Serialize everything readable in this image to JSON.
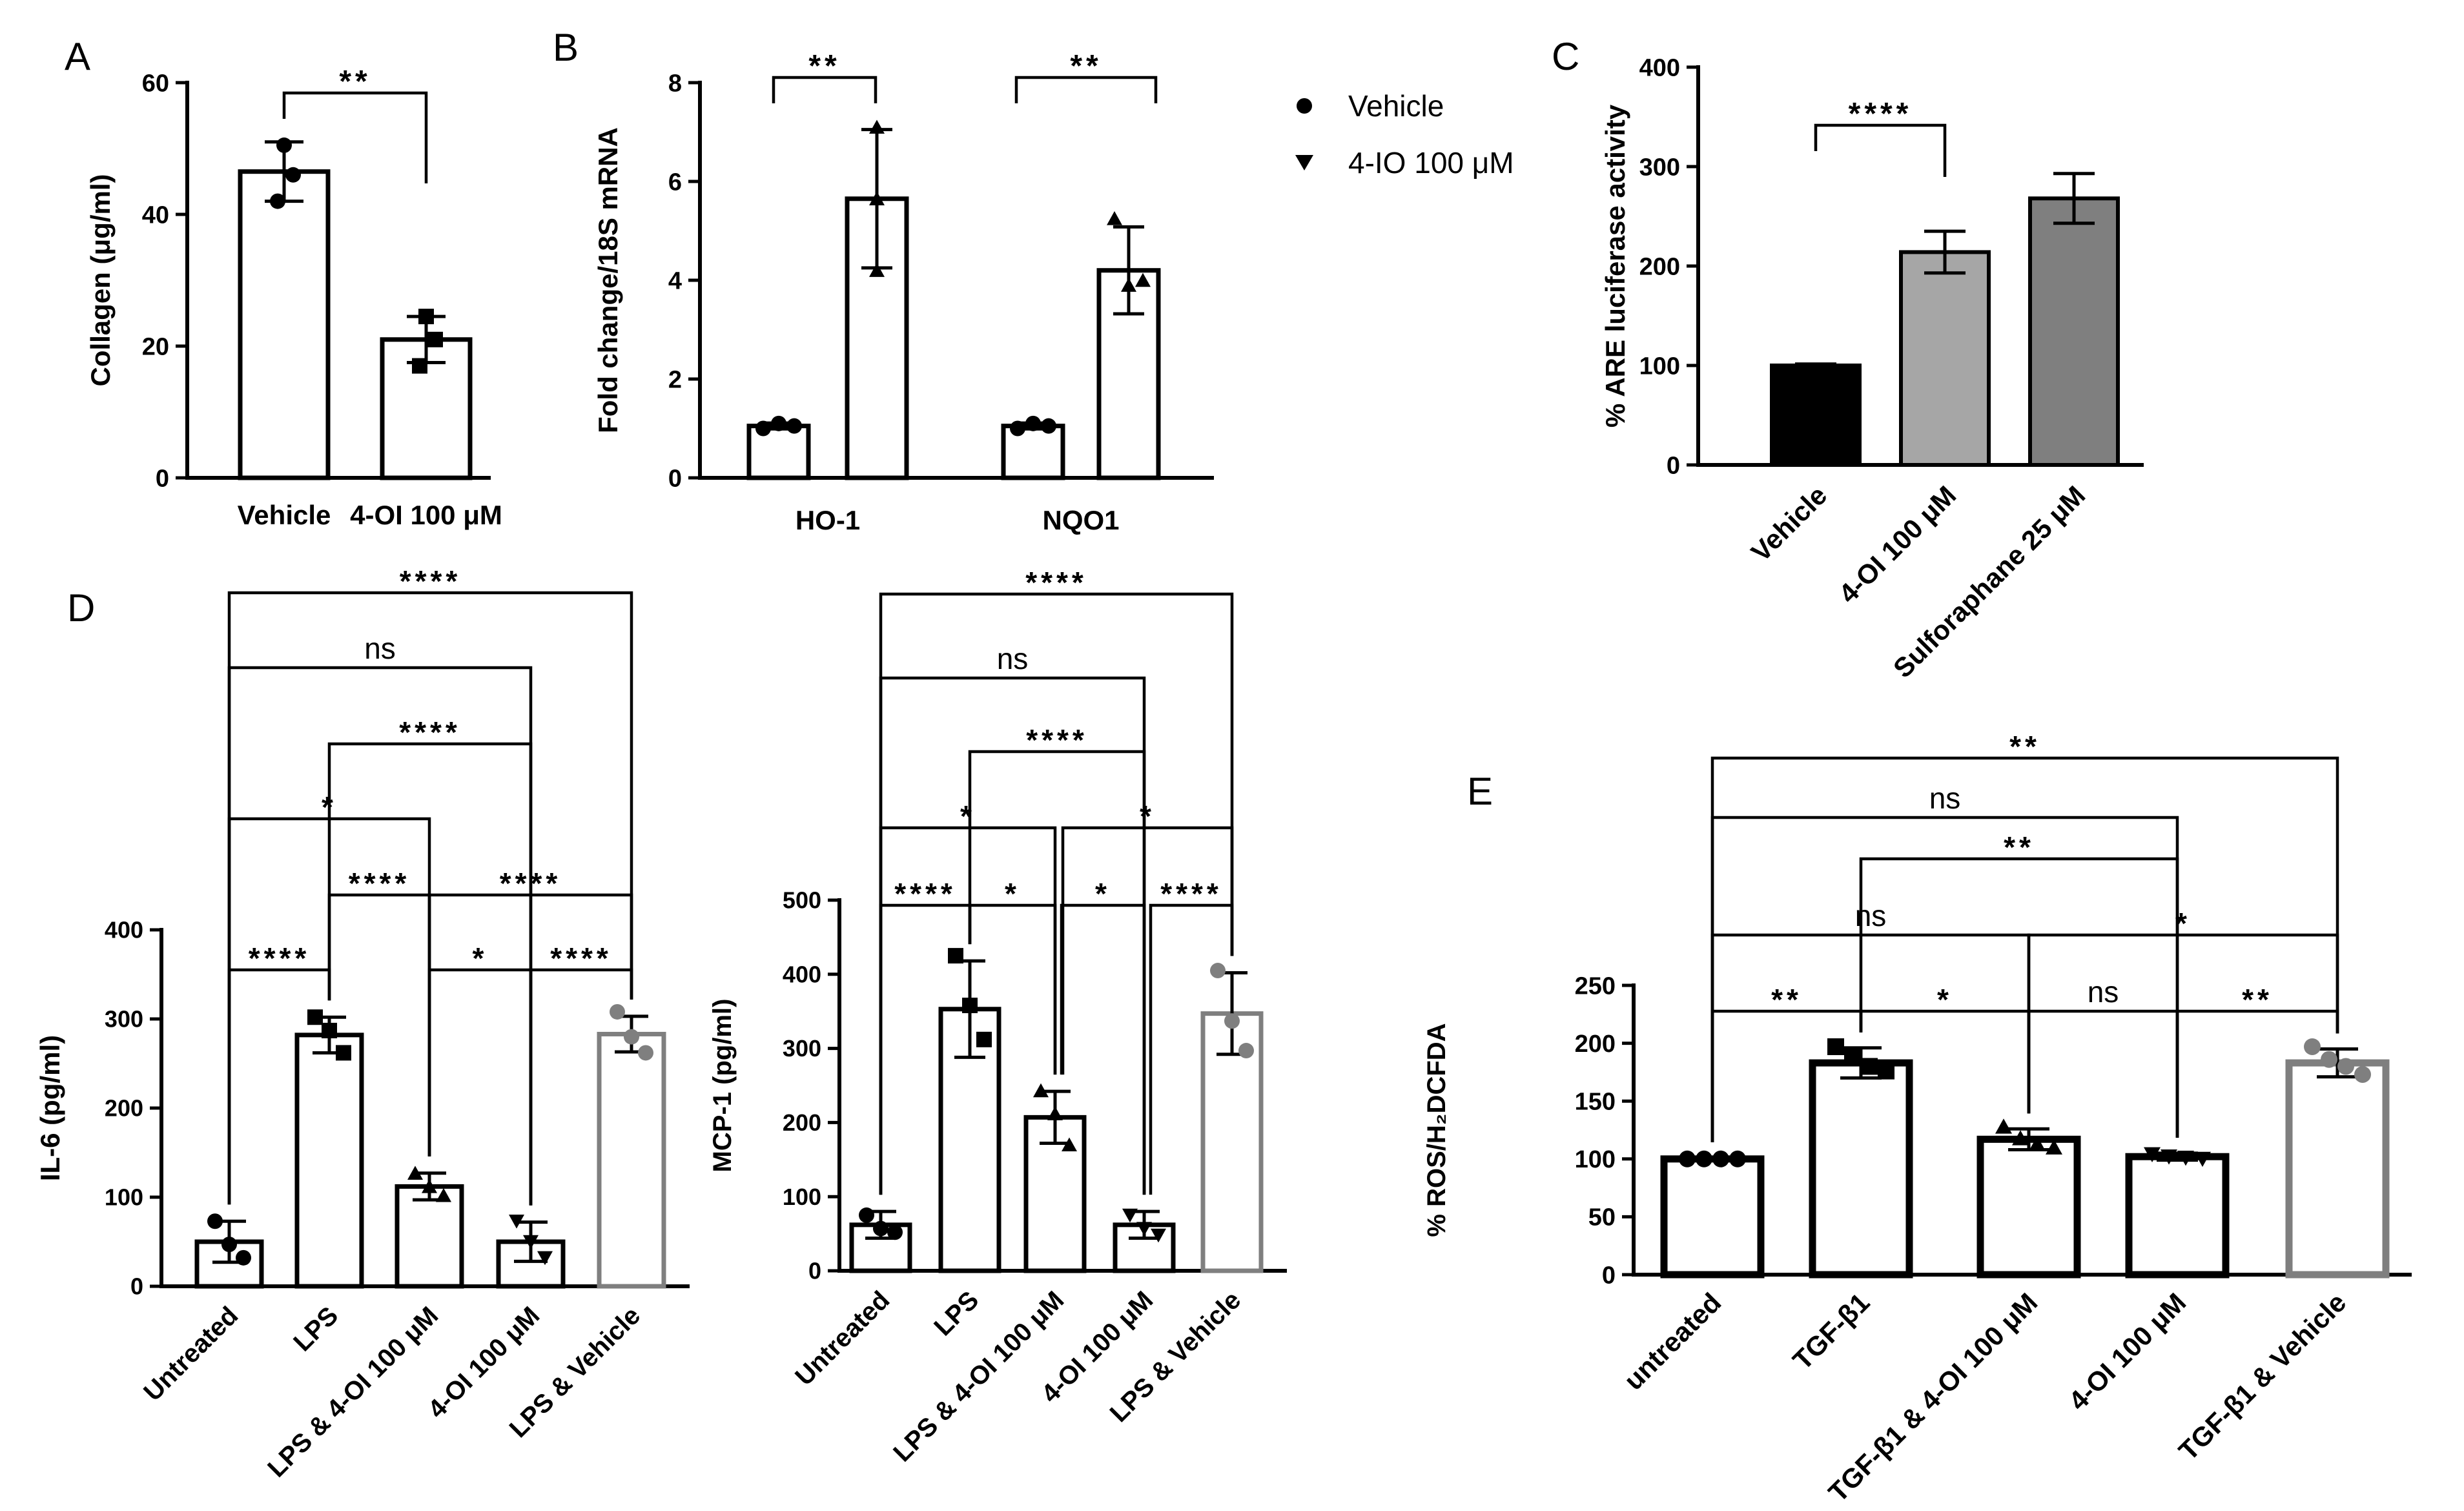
{
  "figure": {
    "panel_letters": [
      "A",
      "B",
      "C",
      "D",
      "E"
    ],
    "legend": [
      {
        "marker": "circle",
        "label": "Vehicle"
      },
      {
        "marker": "triangle-down",
        "label": "4-IO 100 μM"
      }
    ]
  },
  "chart_data": [
    {
      "id": "A",
      "panel": "A",
      "type": "bar",
      "ylabel": "Collagen (μg/ml)",
      "ylim": [
        0,
        60
      ],
      "yticks": [
        0,
        20,
        40,
        60
      ],
      "categories": [
        "Vehicle",
        "4-OI 100 μM"
      ],
      "values": [
        46.5,
        21
      ],
      "error": [
        4.5,
        3.5
      ],
      "points": [
        [
          50.5,
          46,
          42
        ],
        [
          24.5,
          21,
          17
        ]
      ],
      "markers": [
        "circle",
        "square"
      ],
      "colors": [
        "#000000",
        "#000000"
      ],
      "comparisons": [
        {
          "between": [
            0,
            1
          ],
          "label": "**",
          "level": 0
        }
      ]
    },
    {
      "id": "B",
      "panel": "B",
      "type": "bar",
      "ylabel": "Fold change/18S mRNA",
      "ylim": [
        0,
        8
      ],
      "yticks": [
        0,
        2,
        4,
        6,
        8
      ],
      "groups": [
        "HO-1",
        "NQO1"
      ],
      "series": [
        {
          "name": "Vehicle",
          "values": [
            1.05,
            1.05
          ],
          "error": [
            0.06,
            0.06
          ],
          "points": [
            [
              1.0,
              1.1,
              1.05
            ],
            [
              1.0,
              1.1,
              1.05
            ]
          ],
          "marker": "circle"
        },
        {
          "name": "4-IO 100 μM",
          "values": [
            5.65,
            4.2
          ],
          "error": [
            1.4,
            0.88
          ],
          "points": [
            [
              7.1,
              5.65,
              4.2
            ],
            [
              5.25,
              4.0,
              3.9
            ]
          ],
          "marker": "triangle"
        }
      ],
      "comparisons": [
        {
          "group": 0,
          "label": "**"
        },
        {
          "group": 1,
          "label": "**"
        }
      ]
    },
    {
      "id": "C",
      "panel": "C",
      "type": "bar",
      "ylabel": "% ARE luciferase activity",
      "ylim": [
        0,
        400
      ],
      "yticks": [
        0,
        100,
        200,
        300,
        400
      ],
      "categories": [
        "Vehicle",
        "4-OI 100 μM",
        "Sulforaphane 25 μM"
      ],
      "values": [
        100,
        214,
        268
      ],
      "error": [
        1.5,
        21,
        25
      ],
      "fills": [
        "#000000",
        "#a6a6a6",
        "#7f7f7f"
      ],
      "comparisons": [
        {
          "between": [
            0,
            1
          ],
          "label": "****",
          "level": 0
        }
      ]
    },
    {
      "id": "D-IL6",
      "panel": "D",
      "type": "bar",
      "ylabel": "IL-6 (pg/ml)",
      "ylim": [
        0,
        400
      ],
      "yticks": [
        0,
        100,
        200,
        300,
        400
      ],
      "categories": [
        "Untreated",
        "LPS",
        "LPS & 4-OI 100 μM",
        "4-OI 100 μM",
        "LPS & Vehicle"
      ],
      "values": [
        50,
        282,
        112,
        50,
        283
      ],
      "error": [
        23,
        20,
        15,
        22,
        20
      ],
      "points": [
        [
          73,
          47,
          32
        ],
        [
          302,
          287,
          262
        ],
        [
          127,
          112,
          102
        ],
        [
          73,
          50,
          32
        ],
        [
          308,
          280,
          262
        ]
      ],
      "markers": [
        "circle",
        "square",
        "triangle",
        "triangle-down",
        "circle"
      ],
      "colors": [
        "#000000",
        "#000000",
        "#000000",
        "#000000",
        "#7f7f7f"
      ],
      "comparisons": [
        {
          "between": [
            0,
            1
          ],
          "label": "****",
          "level": 0
        },
        {
          "between": [
            1,
            2
          ],
          "label": "****",
          "level": 1
        },
        {
          "between": [
            0,
            2
          ],
          "label": "*",
          "level": 2
        },
        {
          "between": [
            1,
            3
          ],
          "label": "****",
          "level": 3
        },
        {
          "between": [
            0,
            3
          ],
          "label": "ns",
          "level": 4
        },
        {
          "between": [
            0,
            4
          ],
          "label": "****",
          "level": 5
        },
        {
          "between": [
            2,
            3
          ],
          "label": "*",
          "level": 0
        },
        {
          "between": [
            3,
            4
          ],
          "label": "****",
          "level": 0
        },
        {
          "between": [
            2,
            4
          ],
          "label": "****",
          "level": 1
        }
      ]
    },
    {
      "id": "D-MCP1",
      "panel": "D",
      "type": "bar",
      "ylabel": "MCP-1 (pg/ml)",
      "ylim": [
        0,
        500
      ],
      "yticks": [
        0,
        100,
        200,
        300,
        400,
        500
      ],
      "categories": [
        "Untreated",
        "LPS",
        "LPS & 4-OI 100 μM",
        "4-OI 100 μM",
        "LPS & Vehicle"
      ],
      "values": [
        62,
        353,
        207,
        62,
        347
      ],
      "error": [
        18,
        65,
        35,
        18,
        55
      ],
      "points": [
        [
          75,
          57,
          52
        ],
        [
          425,
          358,
          312
        ],
        [
          243,
          212,
          170
        ],
        [
          75,
          57,
          48
        ],
        [
          405,
          337,
          297
        ]
      ],
      "markers": [
        "circle",
        "square",
        "triangle",
        "triangle-down",
        "circle"
      ],
      "colors": [
        "#000000",
        "#000000",
        "#000000",
        "#000000",
        "#7f7f7f"
      ],
      "comparisons": [
        {
          "between": [
            0,
            1
          ],
          "label": "****",
          "level": 0
        },
        {
          "between": [
            1,
            2
          ],
          "label": "*",
          "level": 0
        },
        {
          "between": [
            2,
            3
          ],
          "label": "*",
          "level": 0
        },
        {
          "between": [
            3,
            4
          ],
          "label": "****",
          "level": 0
        },
        {
          "between": [
            0,
            2
          ],
          "label": "*",
          "level": 1
        },
        {
          "between": [
            2,
            4
          ],
          "label": "*",
          "level": 1
        },
        {
          "between": [
            1,
            3
          ],
          "label": "****",
          "level": 2
        },
        {
          "between": [
            0,
            3
          ],
          "label": "ns",
          "level": 3
        },
        {
          "between": [
            0,
            4
          ],
          "label": "****",
          "level": 4
        }
      ]
    },
    {
      "id": "E",
      "panel": "E",
      "type": "bar",
      "ylabel": "% ROS/H₂DCFDA",
      "ylim": [
        0,
        250
      ],
      "yticks": [
        0,
        50,
        100,
        150,
        200,
        250
      ],
      "categories": [
        "untreated",
        "TGF-β1",
        "TGF-β1 & 4-OI 100 μM",
        "4-OI 100 μM",
        "TGF-β1 & Vehicle"
      ],
      "values": [
        100,
        183,
        117,
        102,
        183
      ],
      "error": [
        1,
        13,
        9,
        3,
        12
      ],
      "points": [
        [
          100,
          100,
          100,
          100
        ],
        [
          197,
          188,
          180,
          176
        ],
        [
          128,
          118,
          113,
          110
        ],
        [
          104,
          102,
          101,
          100
        ],
        [
          197,
          186,
          180,
          173
        ]
      ],
      "markers": [
        "circle",
        "square",
        "triangle",
        "triangle-down",
        "circle"
      ],
      "colors": [
        "#000000",
        "#000000",
        "#000000",
        "#000000",
        "#7f7f7f"
      ],
      "comparisons": [
        {
          "between": [
            0,
            1
          ],
          "label": "**",
          "level": 0
        },
        {
          "between": [
            1,
            2
          ],
          "label": "*",
          "level": 0
        },
        {
          "between": [
            2,
            3
          ],
          "label": "ns",
          "level": 0
        },
        {
          "between": [
            3,
            4
          ],
          "label": "**",
          "level": 0
        },
        {
          "between": [
            0,
            2
          ],
          "label": "ns",
          "level": 1
        },
        {
          "between": [
            2,
            4
          ],
          "label": "*",
          "level": 1
        },
        {
          "between": [
            1,
            3
          ],
          "label": "**",
          "level": 2
        },
        {
          "between": [
            0,
            3
          ],
          "label": "ns",
          "level": 3
        },
        {
          "between": [
            0,
            4
          ],
          "label": "**",
          "level": 4
        }
      ]
    }
  ]
}
